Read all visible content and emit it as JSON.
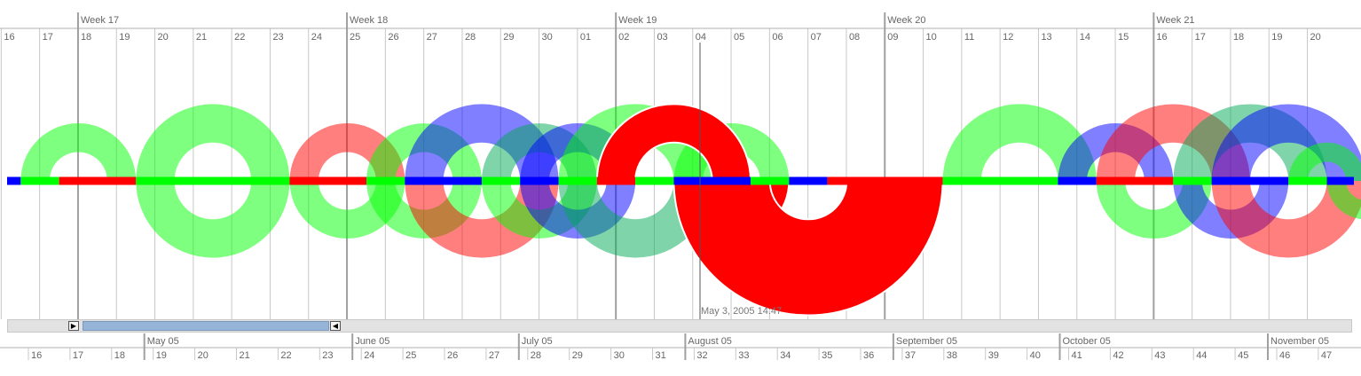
{
  "top_axis": {
    "weeks": [
      {
        "label": "Week 17",
        "day_index": 2
      },
      {
        "label": "Week 18",
        "day_index": 9
      },
      {
        "label": "Week 19",
        "day_index": 16
      },
      {
        "label": "Week 20",
        "day_index": 23
      },
      {
        "label": "Week 21",
        "day_index": 30
      }
    ],
    "days": [
      "16",
      "17",
      "18",
      "19",
      "20",
      "21",
      "22",
      "23",
      "24",
      "25",
      "26",
      "27",
      "28",
      "29",
      "30",
      "01",
      "02",
      "03",
      "04",
      "05",
      "06",
      "07",
      "08",
      "09",
      "10",
      "11",
      "12",
      "13",
      "14",
      "15",
      "16",
      "17",
      "18",
      "19",
      "20"
    ]
  },
  "cursor": {
    "label": "May 3, 2005 14:47"
  },
  "overview_axis": {
    "months": [
      {
        "label": "May 05",
        "week_index": 3
      },
      {
        "label": "June 05",
        "week_index": 8
      },
      {
        "label": "July 05",
        "week_index": 12
      },
      {
        "label": "August 05",
        "week_index": 16
      },
      {
        "label": "September 05",
        "week_index": 21
      },
      {
        "label": "October 05",
        "week_index": 25
      },
      {
        "label": "November 05",
        "week_index": 30
      }
    ],
    "weeks": [
      "16",
      "17",
      "18",
      "19",
      "20",
      "21",
      "22",
      "23",
      "24",
      "25",
      "26",
      "27",
      "28",
      "29",
      "30",
      "31",
      "32",
      "33",
      "34",
      "35",
      "36",
      "37",
      "38",
      "39",
      "40",
      "41",
      "42",
      "43",
      "44",
      "45",
      "46",
      "47"
    ]
  },
  "colors": {
    "red": "#ff0000",
    "green": "#00ff00",
    "blue": "#0000ff",
    "teal": "#00aa55",
    "gridline": "#c8c8c8",
    "week_line": "#a0a0a0"
  },
  "segments": [
    {
      "color": "blue",
      "start": -0.5,
      "end": 0
    },
    {
      "color": "green",
      "start": 0,
      "end": 1
    },
    {
      "color": "red",
      "start": 1,
      "end": 3
    },
    {
      "color": "green",
      "start": 3,
      "end": 7
    },
    {
      "color": "red",
      "start": 7,
      "end": 9
    },
    {
      "color": "green",
      "start": 9,
      "end": 10
    },
    {
      "color": "blue",
      "start": 10,
      "end": 12
    },
    {
      "color": "green",
      "start": 12,
      "end": 13
    },
    {
      "color": "blue",
      "start": 13,
      "end": 14
    },
    {
      "color": "green",
      "start": 14,
      "end": 15
    },
    {
      "color": "red",
      "start": 15,
      "end": 16
    },
    {
      "color": "green",
      "start": 16,
      "end": 17
    },
    {
      "color": "blue",
      "start": 17,
      "end": 19
    },
    {
      "color": "green",
      "start": 19,
      "end": 20
    },
    {
      "color": "blue",
      "start": 20,
      "end": 21
    },
    {
      "color": "red",
      "start": 21,
      "end": 24
    },
    {
      "color": "green",
      "start": 24,
      "end": 27
    },
    {
      "color": "blue",
      "start": 27,
      "end": 28
    },
    {
      "color": "red",
      "start": 28,
      "end": 30
    },
    {
      "color": "green",
      "start": 30,
      "end": 31
    },
    {
      "color": "blue",
      "start": 31,
      "end": 33
    },
    {
      "color": "green",
      "start": 33,
      "end": 34
    },
    {
      "color": "blue",
      "start": 34,
      "end": 35
    }
  ],
  "arcs": [
    {
      "color": "green",
      "from": 0,
      "to": 3,
      "side": "up",
      "opacity": 0.5
    },
    {
      "color": "green",
      "from": 3,
      "to": 7,
      "side": "up",
      "opacity": 0.5
    },
    {
      "color": "green",
      "from": 3,
      "to": 7,
      "side": "down",
      "opacity": 0.5
    },
    {
      "color": "green",
      "from": 7,
      "to": 10,
      "side": "down",
      "opacity": 0.5
    },
    {
      "color": "red",
      "from": 7,
      "to": 10,
      "side": "up",
      "opacity": 0.5
    },
    {
      "color": "green",
      "from": 9,
      "to": 12,
      "side": "up",
      "opacity": 0.5
    },
    {
      "color": "green",
      "from": 9,
      "to": 12,
      "side": "down",
      "opacity": 0.5
    },
    {
      "color": "blue",
      "from": 10,
      "to": 14,
      "side": "up",
      "opacity": 0.5
    },
    {
      "color": "red",
      "from": 10,
      "to": 14,
      "side": "down",
      "opacity": 0.5
    },
    {
      "color": "teal",
      "from": 12,
      "to": 15,
      "side": "up",
      "opacity": 0.5
    },
    {
      "color": "green",
      "from": 12,
      "to": 15,
      "side": "down",
      "opacity": 0.5
    },
    {
      "color": "blue",
      "from": 13,
      "to": 16,
      "side": "up",
      "opacity": 0.5
    },
    {
      "color": "blue",
      "from": 13,
      "to": 16,
      "side": "down",
      "opacity": 0.5
    },
    {
      "color": "green",
      "from": 14,
      "to": 18,
      "side": "up",
      "opacity": 0.5
    },
    {
      "color": "teal",
      "from": 14,
      "to": 18,
      "side": "down",
      "opacity": 0.5
    },
    {
      "color": "green",
      "from": 17,
      "to": 20,
      "side": "up",
      "opacity": 0.5
    },
    {
      "color": "green",
      "from": 24,
      "to": 28,
      "side": "up",
      "opacity": 0.5
    },
    {
      "color": "blue",
      "from": 27,
      "to": 30,
      "side": "up",
      "opacity": 0.5
    },
    {
      "color": "green",
      "from": 28,
      "to": 31,
      "side": "down",
      "opacity": 0.5
    },
    {
      "color": "red",
      "from": 28,
      "to": 32,
      "side": "up",
      "opacity": 0.5
    },
    {
      "color": "blue",
      "from": 30,
      "to": 33,
      "side": "down",
      "opacity": 0.5
    },
    {
      "color": "teal",
      "from": 30,
      "to": 34,
      "side": "up",
      "opacity": 0.5
    },
    {
      "color": "red",
      "from": 31,
      "to": 35,
      "side": "down",
      "opacity": 0.5
    },
    {
      "color": "blue",
      "from": 31,
      "to": 35,
      "side": "up",
      "opacity": 0.5
    },
    {
      "color": "green",
      "from": 33,
      "to": 35,
      "side": "up",
      "opacity": 0.5
    },
    {
      "color": "green",
      "from": 34,
      "to": 36,
      "side": "down",
      "opacity": 0.5
    }
  ],
  "highlight_spiral": {
    "color": "red",
    "bands": [
      {
        "from": 15,
        "to": 19,
        "side": "up"
      },
      {
        "from": 17,
        "to": 20,
        "side": "down"
      },
      {
        "from": 17,
        "to": 24,
        "side": "down"
      }
    ]
  }
}
